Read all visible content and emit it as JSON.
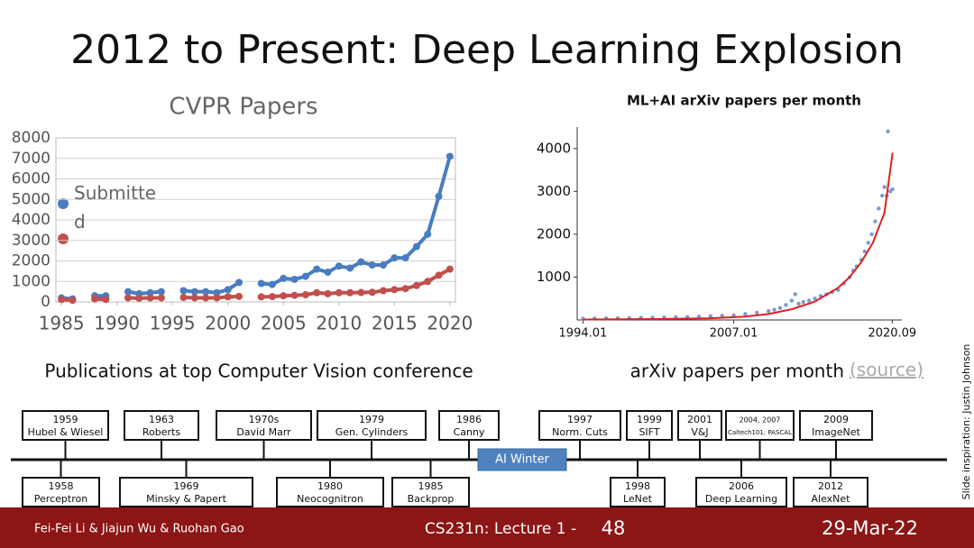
{
  "title": "2012 to Present: Deep Learning Explosion",
  "chart_data": [
    {
      "type": "line",
      "title": "CVPR Papers",
      "x": [
        1985,
        1986,
        1987,
        1988,
        1989,
        1990,
        1991,
        1992,
        1993,
        1994,
        1995,
        1996,
        1997,
        1998,
        1999,
        2000,
        2001,
        2002,
        2003,
        2004,
        2005,
        2006,
        2007,
        2008,
        2009,
        2010,
        2011,
        2012,
        2013,
        2014,
        2015,
        2016,
        2017,
        2018,
        2019,
        2020
      ],
      "series": [
        {
          "name": "Submitted",
          "color": "#4a7cc0",
          "values": [
            200,
            150,
            null,
            300,
            300,
            null,
            500,
            400,
            450,
            500,
            null,
            550,
            500,
            500,
            450,
            600,
            950,
            null,
            900,
            850,
            1150,
            1100,
            1250,
            1600,
            1450,
            1750,
            1650,
            1950,
            1800,
            1800,
            2150,
            2150,
            2700,
            3300,
            5150,
            7100
          ]
        },
        {
          "color": "#c0504d",
          "values": [
            120,
            80,
            null,
            150,
            120,
            null,
            200,
            180,
            200,
            200,
            null,
            220,
            200,
            200,
            200,
            250,
            270,
            null,
            250,
            260,
            300,
            320,
            350,
            450,
            400,
            450,
            450,
            460,
            470,
            550,
            600,
            650,
            800,
            1000,
            1300,
            1600
          ]
        }
      ],
      "xlim": [
        1984.5,
        2020.5
      ],
      "xticks": [
        1985,
        1990,
        1995,
        2000,
        2005,
        2010,
        2015,
        2020
      ],
      "ylim": [
        0,
        8000
      ],
      "yticks": [
        0,
        1000,
        2000,
        3000,
        4000,
        5000,
        6000,
        7000,
        8000
      ],
      "grid": true,
      "caption": "Publications at top Computer Vision conference"
    },
    {
      "type": "scatter",
      "title": "ML+AI arXiv papers per month",
      "series": [
        {
          "color": "#7a9bcf",
          "x": [
            1994,
            1995,
            1996,
            1997,
            1998,
            1999,
            2000,
            2001,
            2002,
            2003,
            2004,
            2005,
            2006,
            2007,
            2008,
            2009,
            2010,
            2010.5,
            2011,
            2011.5,
            2012,
            2012.3,
            2012.6,
            2013,
            2013.5,
            2014,
            2014.5,
            2015,
            2015.5,
            2016,
            2016.5,
            2017,
            2017.3,
            2017.6,
            2018,
            2018.3,
            2018.6,
            2018.9,
            2019.2,
            2019.5,
            2019.8,
            2020,
            2020.2,
            2020.3,
            2020.5,
            2020.7
          ],
          "values": [
            30,
            35,
            40,
            40,
            45,
            50,
            55,
            60,
            65,
            70,
            80,
            90,
            100,
            110,
            140,
            170,
            210,
            240,
            280,
            350,
            450,
            600,
            380,
            420,
            450,
            500,
            560,
            600,
            650,
            700,
            850,
            1000,
            1150,
            1250,
            1400,
            1600,
            1800,
            2000,
            2300,
            2600,
            2900,
            3100,
            2900,
            4400,
            3000,
            3050
          ]
        },
        {
          "type": "line",
          "color": "#e02020",
          "x": [
            1994,
            2000,
            2005,
            2008,
            2010,
            2012,
            2014,
            2016,
            2017,
            2018,
            2019,
            2020,
            2020.7
          ],
          "values": [
            10,
            20,
            40,
            80,
            140,
            250,
            430,
            750,
            1000,
            1350,
            1800,
            2500,
            3900
          ]
        }
      ],
      "xlim": [
        1993.5,
        2021.5
      ],
      "xticks": [
        {
          "value": 1994.0,
          "label": "1994.01"
        },
        {
          "value": 2007.0,
          "label": "2007.01"
        },
        {
          "value": 2020.67,
          "label": "2020.09"
        }
      ],
      "ylim": [
        0,
        4500
      ],
      "yticks": [
        1000,
        2000,
        3000,
        4000
      ],
      "caption": "arXiv papers per month",
      "source": "(source)"
    }
  ],
  "side_note": "Slide inspiration: Justin Johnson",
  "timeline": {
    "band": "AI Winter",
    "top": [
      {
        "year": "1959",
        "label": "Hubel & Wiesel"
      },
      {
        "year": "1963",
        "label": "Roberts"
      },
      {
        "year": "1970s",
        "label": "David Marr"
      },
      {
        "year": "1979",
        "label": "Gen. Cylinders"
      },
      {
        "year": "1986",
        "label": "Canny"
      },
      {
        "year": "1997",
        "label": "Norm. Cuts"
      },
      {
        "year": "1999",
        "label": "SIFT"
      },
      {
        "year": "2001",
        "label": "V&J"
      },
      {
        "year": "2004, 2007",
        "label": "Caltech101; PASCAL"
      },
      {
        "year": "2009",
        "label": "ImageNet"
      }
    ],
    "bottom": [
      {
        "year": "1958",
        "label": "Perceptron"
      },
      {
        "year": "1969",
        "label": "Minsky & Papert"
      },
      {
        "year": "1980",
        "label": "Neocognitron"
      },
      {
        "year": "1985",
        "label": "Backprop"
      },
      {
        "year": "1998",
        "label": "LeNet"
      },
      {
        "year": "2006",
        "label": "Deep Learning"
      },
      {
        "year": "2012",
        "label": "AlexNet"
      }
    ]
  },
  "footer": {
    "authors": "Fei-Fei Li & Jiajun Wu & Ruohan Gao",
    "course": "CS231n: Lecture 1 -",
    "page": "48",
    "date": "29-Mar-22"
  }
}
